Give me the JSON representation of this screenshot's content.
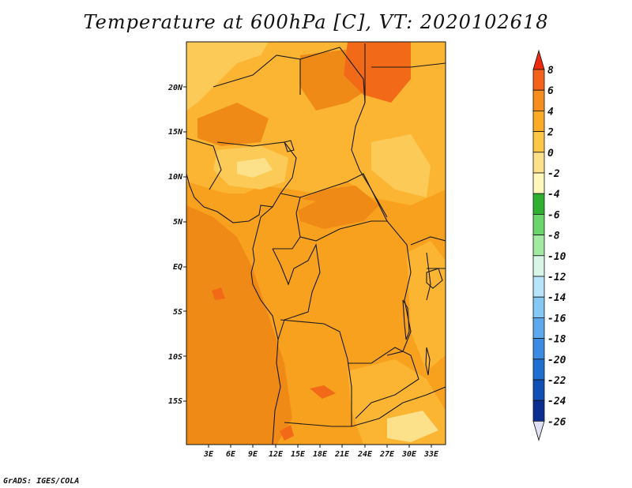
{
  "title": "Temperature at 600hPa [C], VT: 2020102618",
  "credit": "GrADS: IGES/COLA",
  "axes": {
    "lat_labels": [
      "20N",
      "15N",
      "10N",
      "5N",
      "EQ",
      "5S",
      "10S",
      "15S"
    ],
    "lon_labels": [
      "3E",
      "6E",
      "9E",
      "12E",
      "15E",
      "18E",
      "21E",
      "24E",
      "27E",
      "30E",
      "33E"
    ]
  },
  "colorbar": {
    "labels": [
      "8",
      "6",
      "4",
      "2",
      "0",
      "-2",
      "-4",
      "-6",
      "-8",
      "-10",
      "-12",
      "-14",
      "-16",
      "-18",
      "-20",
      "-22",
      "-24",
      "-26"
    ],
    "colors": [
      "#ec2a10",
      "#f4621c",
      "#f68d1c",
      "#fbab26",
      "#fcc647",
      "#fde08a",
      "#fff7bc",
      "#30b030",
      "#6ad56a",
      "#a2eaa2",
      "#d8f6e8",
      "#b8e4fb",
      "#86c8f4",
      "#5ea9ee",
      "#3b8be2",
      "#1f6fd3",
      "#1050b5",
      "#0a2f90",
      "#06136a"
    ]
  },
  "colors": {
    "base": "#f8a11f",
    "warm": "#f08a16",
    "cool": "#fbb533",
    "cooler": "#fccb57",
    "coolest": "#fde08a",
    "hot": "#f26a18",
    "border": "#1a1a1a"
  }
}
